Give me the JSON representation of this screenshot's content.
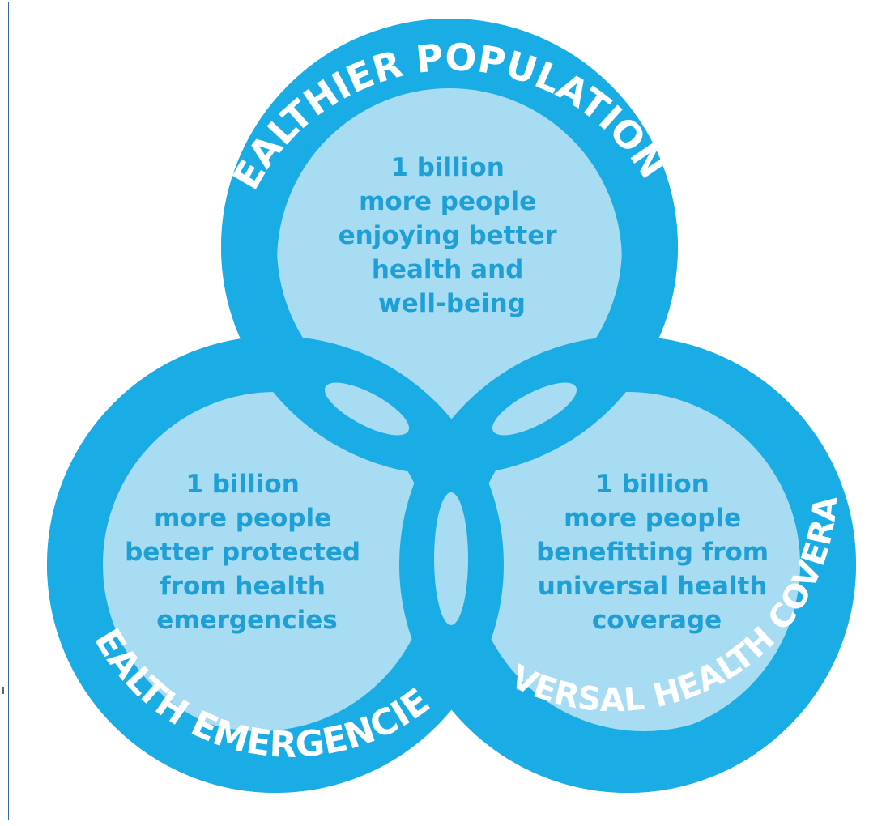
{
  "colors": {
    "ring": "#1aace4",
    "inner": "#a8dcf3",
    "text": "#1e9fd6",
    "label": "#ffffff",
    "frame": "#2c6aa8"
  },
  "circles": {
    "top": {
      "label": "HEALTHIER POPULATIONS",
      "lines": [
        "1 billion",
        "more people",
        "enjoying better",
        "health and",
        "well-being"
      ]
    },
    "left": {
      "label": "HEALTH EMERGENCIES",
      "lines": [
        "1 billion",
        "more people",
        "better protected",
        "from health",
        "emergencies"
      ]
    },
    "right": {
      "label": "UNIVERSAL HEALTH COVERAGE",
      "lines": [
        "1 billion",
        "more people",
        "benefitting from",
        "universal health",
        "coverage"
      ]
    }
  }
}
